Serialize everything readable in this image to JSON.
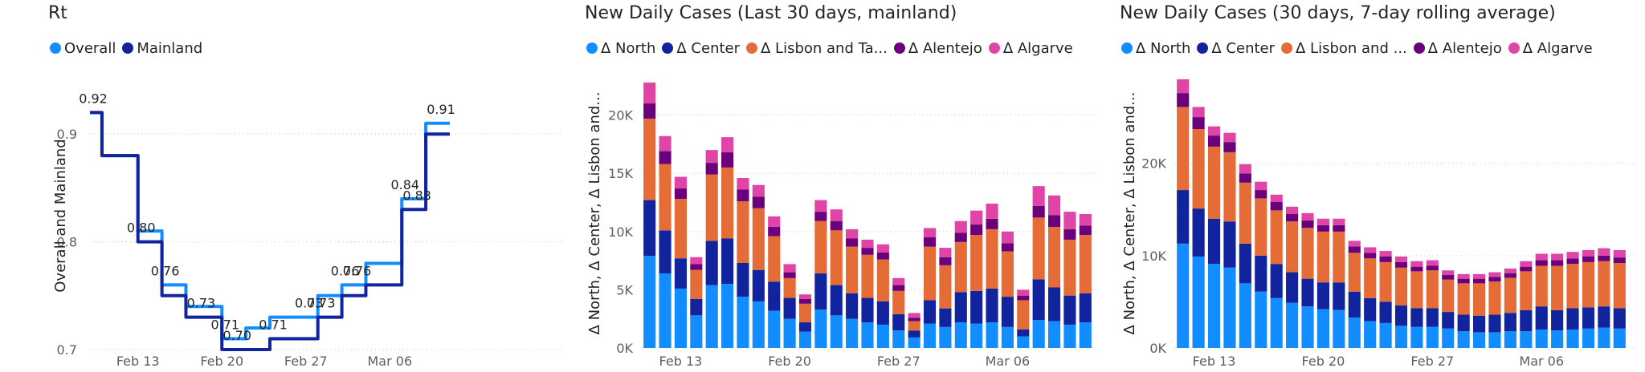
{
  "chart_data": [
    {
      "type": "line",
      "title": "Rt",
      "ylabel": "Overall and Mainland",
      "ylim": [
        0.7,
        0.95
      ],
      "yticks": [
        "0.7",
        "0.8",
        "0.9"
      ],
      "xtick_labels": [
        "Feb 13",
        "Feb 20",
        "Feb 27",
        "Mar 06"
      ],
      "x": [
        "Feb 09",
        "Feb 10",
        "Feb 11",
        "Feb 12",
        "Feb 13",
        "Feb 14",
        "Feb 15",
        "Feb 16",
        "Feb 17",
        "Feb 18",
        "Feb 19",
        "Feb 20",
        "Feb 21",
        "Feb 22",
        "Feb 23",
        "Feb 24",
        "Feb 25",
        "Feb 26",
        "Feb 27",
        "Feb 28",
        "Mar 01",
        "Mar 02",
        "Mar 03",
        "Mar 04",
        "Mar 05",
        "Mar 06",
        "Mar 07",
        "Mar 08",
        "Mar 09",
        "Mar 10",
        "Mar 11"
      ],
      "series": [
        {
          "name": "Overall",
          "color": "#118DFF",
          "values": [
            0.92,
            0.88,
            0.88,
            0.88,
            0.81,
            0.81,
            0.76,
            0.76,
            0.74,
            0.74,
            0.74,
            0.71,
            0.71,
            0.72,
            0.72,
            0.73,
            0.73,
            0.73,
            0.73,
            0.75,
            0.75,
            0.76,
            0.76,
            0.78,
            0.78,
            0.78,
            0.84,
            0.84,
            0.91,
            0.91,
            0.91
          ]
        },
        {
          "name": "Mainland",
          "color": "#12239E",
          "values": [
            0.92,
            0.88,
            0.88,
            0.88,
            0.8,
            0.8,
            0.75,
            0.75,
            0.73,
            0.73,
            0.73,
            0.7,
            0.7,
            0.7,
            0.7,
            0.71,
            0.71,
            0.71,
            0.71,
            0.73,
            0.73,
            0.75,
            0.75,
            0.76,
            0.76,
            0.76,
            0.83,
            0.83,
            0.9,
            0.9,
            0.9
          ]
        }
      ],
      "data_labels": [
        {
          "x": "Feb 09",
          "text": "0.92",
          "value": 0.92
        },
        {
          "x": "Feb 13",
          "text": "0.80",
          "value": 0.8
        },
        {
          "x": "Feb 15",
          "text": "0.76",
          "value": 0.76
        },
        {
          "x": "Feb 18",
          "text": "0.73",
          "value": 0.73
        },
        {
          "x": "Feb 20",
          "text": "0.71",
          "value": 0.71
        },
        {
          "x": "Feb 21",
          "text": "0.70",
          "value": 0.7
        },
        {
          "x": "Feb 24",
          "text": "0.71",
          "value": 0.71
        },
        {
          "x": "Feb 27",
          "text": "0.73",
          "value": 0.73
        },
        {
          "x": "Feb 28",
          "text": "0.73",
          "value": 0.73
        },
        {
          "x": "Mar 02",
          "text": "0.76",
          "value": 0.76
        },
        {
          "x": "Mar 03",
          "text": "0.76",
          "value": 0.76
        },
        {
          "x": "Mar 07",
          "text": "0.84",
          "value": 0.84
        },
        {
          "x": "Mar 08",
          "text": "0.83",
          "value": 0.83
        },
        {
          "x": "Mar 10",
          "text": "0.91",
          "value": 0.91
        }
      ],
      "grid": true,
      "legend": "top-left"
    },
    {
      "type": "bar",
      "stacked": true,
      "title": "New Daily Cases (Last 30 days, mainland)",
      "ylabel": "Δ North, Δ Center, Δ Lisbon and...",
      "ylim": [
        0,
        23000
      ],
      "yticks": [
        "0K",
        "5K",
        "10K",
        "15K",
        "20K"
      ],
      "xtick_labels": [
        "Feb 13",
        "Feb 20",
        "Feb 27",
        "Mar 06"
      ],
      "categories": [
        "Feb 11",
        "Feb 12",
        "Feb 13",
        "Feb 14",
        "Feb 15",
        "Feb 16",
        "Feb 17",
        "Feb 18",
        "Feb 19",
        "Feb 20",
        "Feb 21",
        "Feb 22",
        "Feb 23",
        "Feb 24",
        "Feb 25",
        "Feb 26",
        "Feb 27",
        "Feb 28",
        "Mar 01",
        "Mar 02",
        "Mar 03",
        "Mar 04",
        "Mar 05",
        "Mar 06",
        "Mar 07",
        "Mar 08",
        "Mar 09",
        "Mar 10",
        "Mar 11"
      ],
      "legend_labels": [
        "Δ North",
        "Δ Center",
        "Δ Lisbon and Ta...",
        "Δ Alentejo",
        "Δ Algarve"
      ],
      "series": [
        {
          "name": "Δ North",
          "color": "#118DFF",
          "values": [
            7900,
            6400,
            5100,
            2800,
            5400,
            5500,
            4400,
            4000,
            3200,
            2500,
            1400,
            3300,
            2800,
            2500,
            2200,
            2000,
            1500,
            900,
            2100,
            1800,
            2200,
            2100,
            2200,
            1800,
            1000,
            2400,
            2300,
            2000,
            2200
          ]
        },
        {
          "name": "Δ Center",
          "color": "#12239E",
          "values": [
            4800,
            3700,
            2600,
            1400,
            3800,
            3900,
            2900,
            2700,
            2500,
            1800,
            800,
            3100,
            2600,
            2200,
            2100,
            2000,
            1400,
            600,
            2000,
            1600,
            2600,
            2800,
            2900,
            2600,
            600,
            3500,
            2900,
            2500,
            2500
          ]
        },
        {
          "name": "Δ Lisbon and Ta...",
          "color": "#E66C37",
          "values": [
            7000,
            5700,
            5100,
            2500,
            5700,
            6100,
            5300,
            5300,
            3900,
            1700,
            1600,
            4500,
            4700,
            4000,
            3700,
            3600,
            2000,
            800,
            4600,
            3700,
            4300,
            4800,
            5100,
            3900,
            2500,
            5300,
            5200,
            4800,
            5000
          ]
        },
        {
          "name": "Δ Alentejo",
          "color": "#6B007B",
          "values": [
            1300,
            1100,
            900,
            500,
            1000,
            1300,
            1000,
            1000,
            800,
            500,
            400,
            800,
            800,
            700,
            600,
            600,
            500,
            300,
            800,
            700,
            800,
            900,
            900,
            700,
            400,
            1000,
            1000,
            900,
            800
          ]
        },
        {
          "name": "Δ Algarve",
          "color": "#E044A7",
          "values": [
            1800,
            1300,
            1000,
            600,
            1100,
            1300,
            1000,
            1000,
            900,
            700,
            400,
            1000,
            1000,
            800,
            700,
            700,
            600,
            400,
            800,
            800,
            1000,
            1200,
            1300,
            1000,
            500,
            1700,
            1700,
            1500,
            1000
          ]
        }
      ],
      "grid": true,
      "legend": "top-left"
    },
    {
      "type": "bar",
      "stacked": true,
      "title": "New Daily Cases (30 days, 7-day rolling average)",
      "ylabel": "Δ North, Δ Center, Δ Lisbon and...",
      "ylim": [
        0,
        29000
      ],
      "yticks": [
        "0K",
        "10K",
        "20K"
      ],
      "xtick_labels": [
        "Feb 13",
        "Feb 20",
        "Feb 27",
        "Mar 06"
      ],
      "categories": [
        "Feb 11",
        "Feb 12",
        "Feb 13",
        "Feb 14",
        "Feb 15",
        "Feb 16",
        "Feb 17",
        "Feb 18",
        "Feb 19",
        "Feb 20",
        "Feb 21",
        "Feb 22",
        "Feb 23",
        "Feb 24",
        "Feb 25",
        "Feb 26",
        "Feb 27",
        "Feb 28",
        "Mar 01",
        "Mar 02",
        "Mar 03",
        "Mar 04",
        "Mar 05",
        "Mar 06",
        "Mar 07",
        "Mar 08",
        "Mar 09",
        "Mar 10",
        "Mar 11"
      ],
      "legend_labels": [
        "Δ North",
        "Δ Center",
        "Δ Lisbon and ...",
        "Δ Alentejo",
        "Δ Algarve"
      ],
      "series": [
        {
          "name": "Δ North",
          "color": "#118DFF",
          "values": [
            11300,
            9900,
            9100,
            8700,
            7000,
            6100,
            5400,
            4900,
            4500,
            4200,
            4100,
            3300,
            2900,
            2700,
            2400,
            2300,
            2300,
            2100,
            1800,
            1700,
            1700,
            1800,
            1800,
            2000,
            1900,
            2000,
            2100,
            2200,
            2100
          ]
        },
        {
          "name": "Δ Center",
          "color": "#12239E",
          "values": [
            5800,
            5200,
            4900,
            5000,
            4300,
            3900,
            3700,
            3300,
            3000,
            2900,
            3000,
            2800,
            2500,
            2300,
            2200,
            2000,
            2000,
            1800,
            1800,
            1800,
            1900,
            2000,
            2300,
            2500,
            2200,
            2300,
            2300,
            2300,
            2200
          ]
        },
        {
          "name": "Δ Lisbon and ...",
          "color": "#E66C37",
          "values": [
            9000,
            8600,
            7800,
            7500,
            6600,
            6200,
            5800,
            5500,
            5500,
            5500,
            5500,
            4200,
            4300,
            4300,
            4100,
            4000,
            4100,
            3500,
            3400,
            3500,
            3600,
            3800,
            4200,
            4400,
            4800,
            4800,
            4900,
            4900,
            4900
          ]
        },
        {
          "name": "Δ Alentejo",
          "color": "#6B007B",
          "values": [
            1500,
            1300,
            1200,
            1100,
            1000,
            900,
            900,
            800,
            800,
            700,
            700,
            700,
            600,
            600,
            600,
            500,
            500,
            500,
            500,
            500,
            500,
            500,
            500,
            600,
            600,
            600,
            600,
            600,
            600
          ]
        },
        {
          "name": "Δ Algarve",
          "color": "#E044A7",
          "values": [
            1500,
            1100,
            1000,
            1000,
            1000,
            900,
            800,
            800,
            800,
            700,
            700,
            600,
            600,
            600,
            600,
            600,
            600,
            500,
            500,
            500,
            500,
            500,
            600,
            700,
            700,
            700,
            700,
            800,
            800
          ]
        }
      ],
      "grid": true,
      "legend": "top-left"
    }
  ]
}
